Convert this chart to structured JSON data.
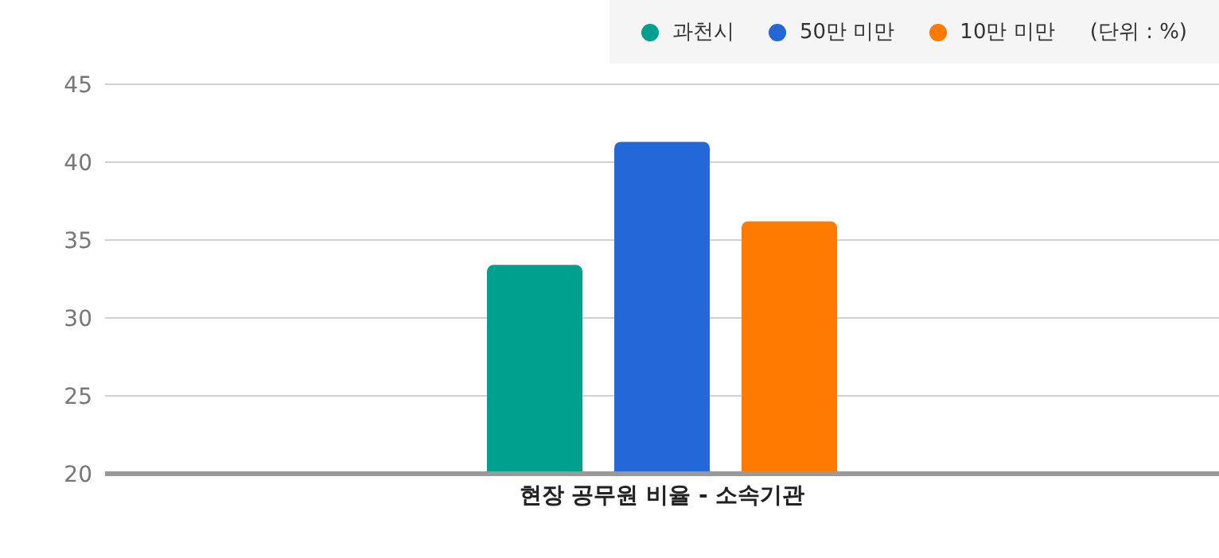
{
  "chart_data": {
    "type": "bar",
    "categories": [
      "현장 공무원 비율 - 소속기관"
    ],
    "series": [
      {
        "name": "과천시",
        "color": "#00a08f",
        "values": [
          33.4
        ]
      },
      {
        "name": "50만 미만",
        "color": "#2468d8",
        "values": [
          41.3
        ]
      },
      {
        "name": "10만 미만",
        "color": "#ff7a00",
        "values": [
          36.2
        ]
      }
    ],
    "ylim": [
      20,
      45
    ],
    "yticks": [
      20,
      25,
      30,
      35,
      40,
      45
    ],
    "grid": "y",
    "legend": "top right",
    "annotations": [
      "(단위 : %)"
    ]
  }
}
